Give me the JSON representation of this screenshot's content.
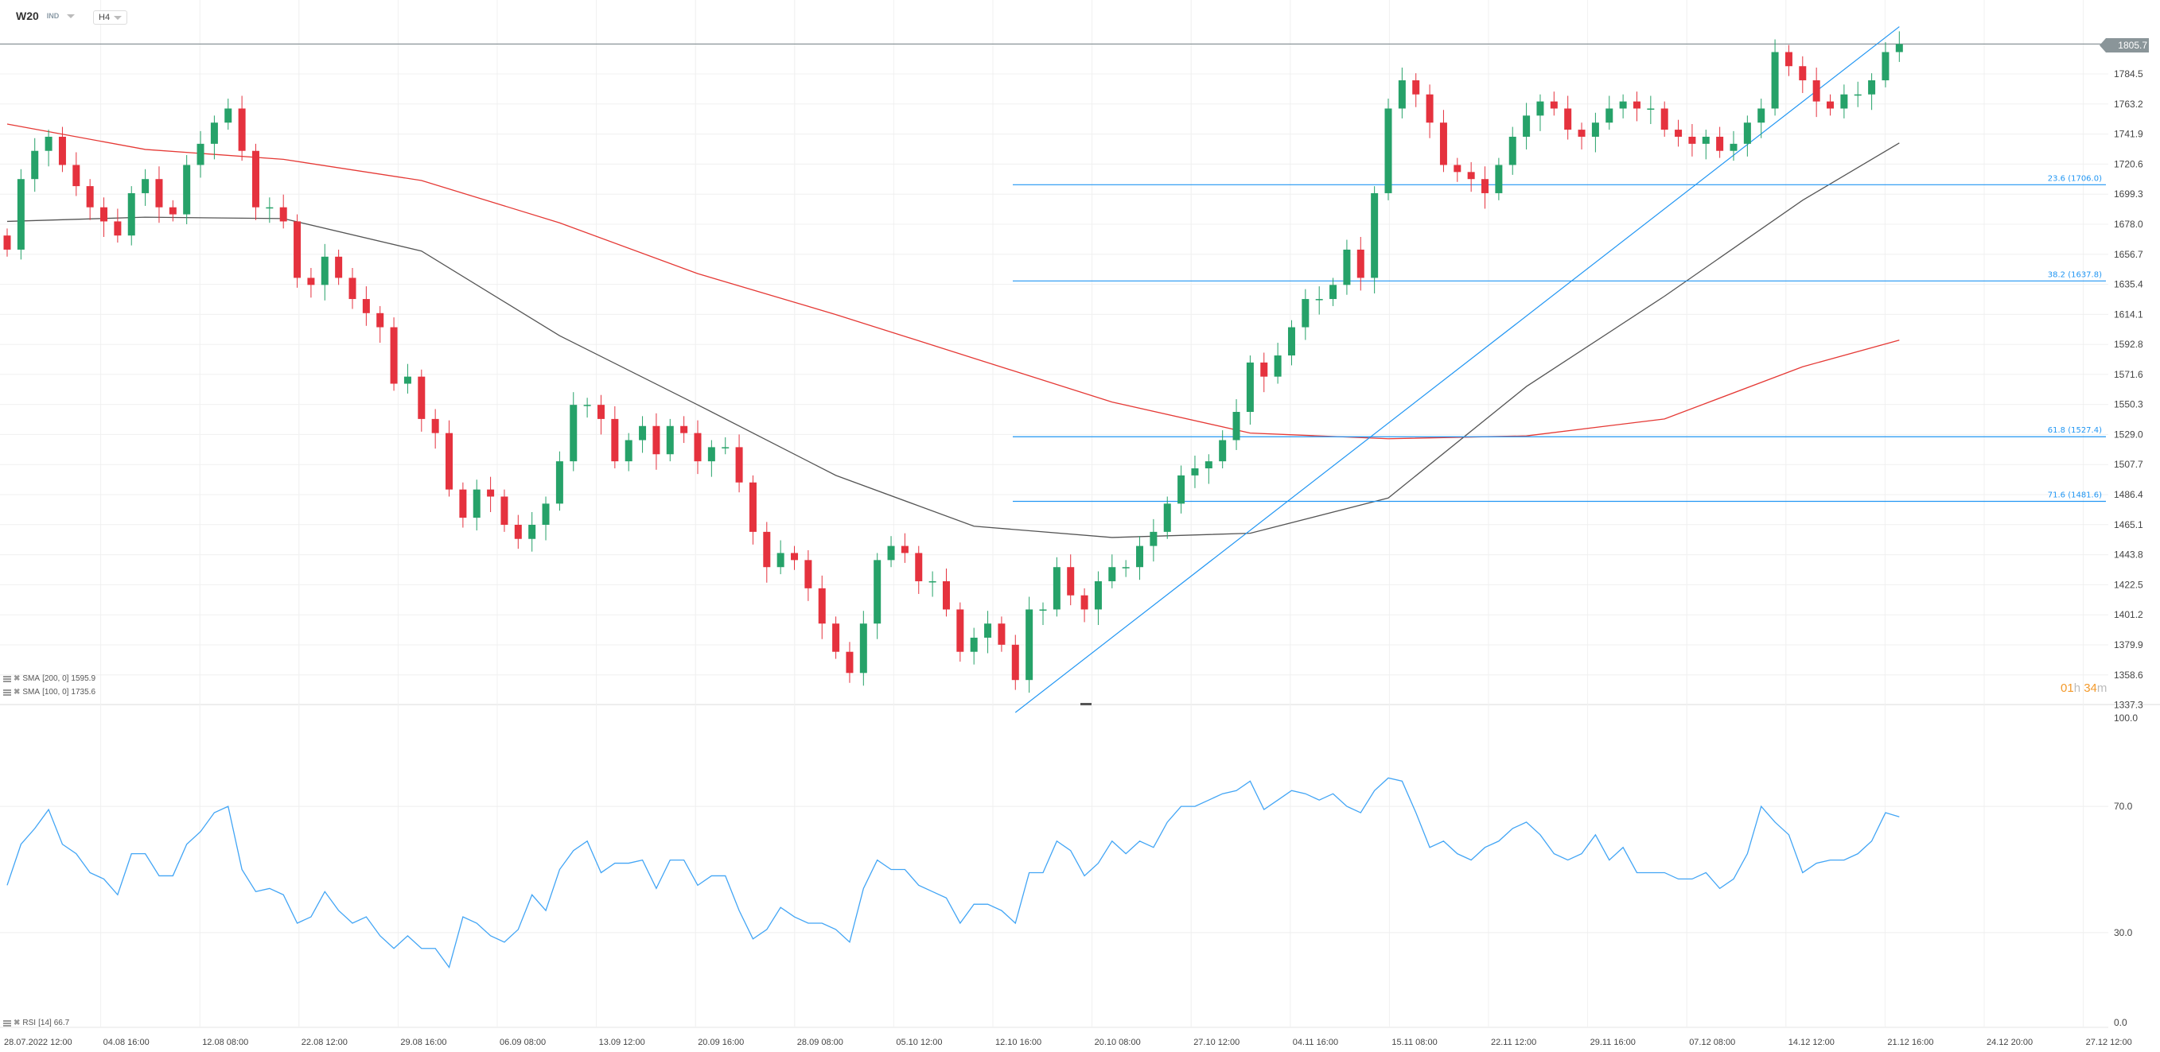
{
  "header": {
    "symbol": "W20",
    "instrument_type": "IND",
    "timeframe": "H4"
  },
  "current_price": "1805.7",
  "timer": {
    "hours": "01",
    "h": "h",
    "minutes": "34",
    "m": "m"
  },
  "legends": {
    "sma200": {
      "label": "SMA",
      "params": "[200,  0]",
      "value": "1595.9"
    },
    "sma100": {
      "label": "SMA",
      "params": "[100,  0]",
      "value": "1735.6"
    },
    "rsi": {
      "label": "RSI",
      "params": "[14]",
      "value": "66.7"
    }
  },
  "colors": {
    "up": "#26a269",
    "down": "#e5323e",
    "sma200": "#e53935",
    "sma100": "#555555",
    "fib": "#2196f3",
    "trendline": "#2196f3",
    "rsi": "#42a5f5",
    "price_tag": "#8a9599",
    "timer": "#f39a2b"
  },
  "chart_data": [
    {
      "type": "candlestick",
      "price_axis_ticks": [
        "1784.5",
        "1763.2",
        "1741.9",
        "1720.6",
        "1699.3",
        "1678.0",
        "1656.7",
        "1635.4",
        "1614.1",
        "1592.8",
        "1571.6",
        "1550.3",
        "1529.0",
        "1507.7",
        "1486.4",
        "1465.1",
        "1443.8",
        "1422.5",
        "1401.2",
        "1379.9",
        "1358.6",
        "1337.3"
      ],
      "ylim": [
        1337.3,
        1805.7
      ],
      "time_axis_ticks": [
        "28.07.2022  12:00",
        "04.08  16:00",
        "12.08  08:00",
        "22.08  12:00",
        "29.08  16:00",
        "06.09  08:00",
        "13.09  12:00",
        "20.09  16:00",
        "28.09  08:00",
        "05.10  12:00",
        "12.10  16:00",
        "20.10  08:00",
        "27.10  12:00",
        "04.11  16:00",
        "15.11  08:00",
        "22.11  12:00",
        "29.11  16:00",
        "07.12  08:00",
        "14.12  12:00",
        "21.12  16:00",
        "24.12  20:00",
        "27.12  12:00"
      ],
      "open": [
        1670,
        1660,
        1710,
        1730,
        1740,
        1720,
        1705,
        1690,
        1680,
        1670,
        1700,
        1710,
        1690,
        1685,
        1720,
        1735,
        1750,
        1760,
        1730,
        1690,
        1690,
        1680,
        1640,
        1635,
        1655,
        1640,
        1625,
        1615,
        1605,
        1565,
        1570,
        1540,
        1530,
        1490,
        1470,
        1490,
        1485,
        1465,
        1455,
        1465,
        1480,
        1510,
        1550,
        1550,
        1540,
        1510,
        1525,
        1535,
        1515,
        1535,
        1530,
        1510,
        1520,
        1520,
        1495,
        1460,
        1435,
        1445,
        1440,
        1420,
        1395,
        1375,
        1360,
        1395,
        1440,
        1450,
        1445,
        1425,
        1425,
        1405,
        1375,
        1385,
        1395,
        1380,
        1355,
        1405,
        1405,
        1435,
        1415,
        1405,
        1425,
        1435,
        1435,
        1450,
        1460,
        1480,
        1500,
        1505,
        1510,
        1525,
        1545,
        1580,
        1570,
        1585,
        1605,
        1625,
        1625,
        1635,
        1660,
        1640,
        1700,
        1760,
        1780,
        1770,
        1750,
        1720,
        1715,
        1710,
        1700,
        1720,
        1740,
        1755,
        1765,
        1760,
        1745,
        1740,
        1750,
        1760,
        1765,
        1760,
        1760,
        1745,
        1740,
        1735,
        1740,
        1730,
        1735,
        1750,
        1760,
        1800,
        1790,
        1780,
        1765,
        1760,
        1770,
        1770,
        1780,
        1800
      ],
      "close": [
        1660,
        1710,
        1730,
        1740,
        1720,
        1705,
        1690,
        1680,
        1670,
        1700,
        1710,
        1690,
        1685,
        1720,
        1735,
        1750,
        1760,
        1730,
        1690,
        1690,
        1680,
        1640,
        1635,
        1655,
        1640,
        1625,
        1615,
        1605,
        1565,
        1570,
        1540,
        1530,
        1490,
        1470,
        1490,
        1485,
        1465,
        1455,
        1465,
        1480,
        1510,
        1550,
        1550,
        1540,
        1510,
        1525,
        1535,
        1515,
        1535,
        1530,
        1510,
        1520,
        1520,
        1495,
        1460,
        1435,
        1445,
        1440,
        1420,
        1395,
        1375,
        1360,
        1395,
        1440,
        1450,
        1445,
        1425,
        1425,
        1405,
        1375,
        1385,
        1395,
        1380,
        1355,
        1405,
        1405,
        1435,
        1415,
        1405,
        1425,
        1435,
        1435,
        1450,
        1460,
        1480,
        1500,
        1505,
        1510,
        1525,
        1545,
        1580,
        1570,
        1585,
        1605,
        1625,
        1625,
        1635,
        1660,
        1640,
        1700,
        1760,
        1780,
        1770,
        1750,
        1720,
        1715,
        1710,
        1700,
        1720,
        1740,
        1755,
        1765,
        1760,
        1745,
        1740,
        1750,
        1760,
        1765,
        1760,
        1760,
        1745,
        1740,
        1735,
        1740,
        1730,
        1735,
        1750,
        1760,
        1800,
        1790,
        1780,
        1765,
        1760,
        1770,
        1770,
        1780,
        1800,
        1805.7
      ],
      "sma200": {
        "at_candle": [
          0,
          10,
          20,
          30,
          40,
          50,
          60,
          70,
          80,
          90,
          100,
          110,
          120,
          130,
          137
        ],
        "values": [
          1749,
          1731,
          1724,
          1709,
          1679,
          1643,
          1614,
          1583,
          1552,
          1530,
          1526,
          1528,
          1540,
          1577,
          1595.9
        ]
      },
      "sma100": {
        "at_candle": [
          0,
          10,
          20,
          30,
          40,
          50,
          60,
          70,
          80,
          90,
          100,
          110,
          120,
          130,
          137
        ],
        "values": [
          1680,
          1683,
          1682,
          1659,
          1599,
          1550,
          1500,
          1464,
          1456,
          1459,
          1484,
          1563,
          1627,
          1695,
          1735.6
        ]
      },
      "fibonacci": [
        {
          "label": "23.6 (1706.0)",
          "price": 1706.0
        },
        {
          "label": "38.2 (1637.8)",
          "price": 1637.8
        },
        {
          "label": "61.8 (1527.4)",
          "price": 1527.4
        },
        {
          "label": "71.6 (1481.6)",
          "price": 1481.6
        }
      ],
      "trendline": {
        "from": {
          "candle": 73,
          "price": 1332
        },
        "to": {
          "candle": 137,
          "price": 1818
        }
      }
    },
    {
      "type": "line",
      "name": "RSI [14]",
      "ylim": [
        0,
        100
      ],
      "axis_ticks": [
        "100.0",
        "70.0",
        "30.0",
        "0.0"
      ],
      "values": [
        45,
        58,
        63,
        69,
        58,
        55,
        49,
        47,
        42,
        55,
        55,
        48,
        48,
        58,
        62,
        68,
        70,
        50,
        43,
        44,
        42,
        33,
        35,
        43,
        37,
        33,
        35,
        29,
        25,
        29,
        25,
        25,
        19,
        35,
        33,
        29,
        27,
        31,
        42,
        37,
        50,
        56,
        59,
        49,
        52,
        52,
        53,
        44,
        53,
        53,
        45,
        48,
        48,
        37,
        28,
        31,
        38,
        35,
        33,
        33,
        31,
        27,
        44,
        53,
        50,
        50,
        45,
        43,
        41,
        33,
        39,
        39,
        37,
        33,
        49,
        49,
        59,
        56,
        48,
        52,
        59,
        55,
        59,
        57,
        65,
        70,
        70,
        72,
        74,
        75,
        78,
        69,
        72,
        75,
        74,
        72,
        74,
        70,
        68,
        75,
        79,
        78,
        68,
        57,
        59,
        55,
        53,
        57,
        59,
        63,
        65,
        61,
        55,
        53,
        55,
        61,
        53,
        57,
        49,
        49,
        49,
        47,
        47,
        49,
        44,
        47,
        55,
        70,
        65,
        61,
        49,
        52,
        53,
        53,
        55,
        59,
        68,
        66.7
      ]
    }
  ]
}
